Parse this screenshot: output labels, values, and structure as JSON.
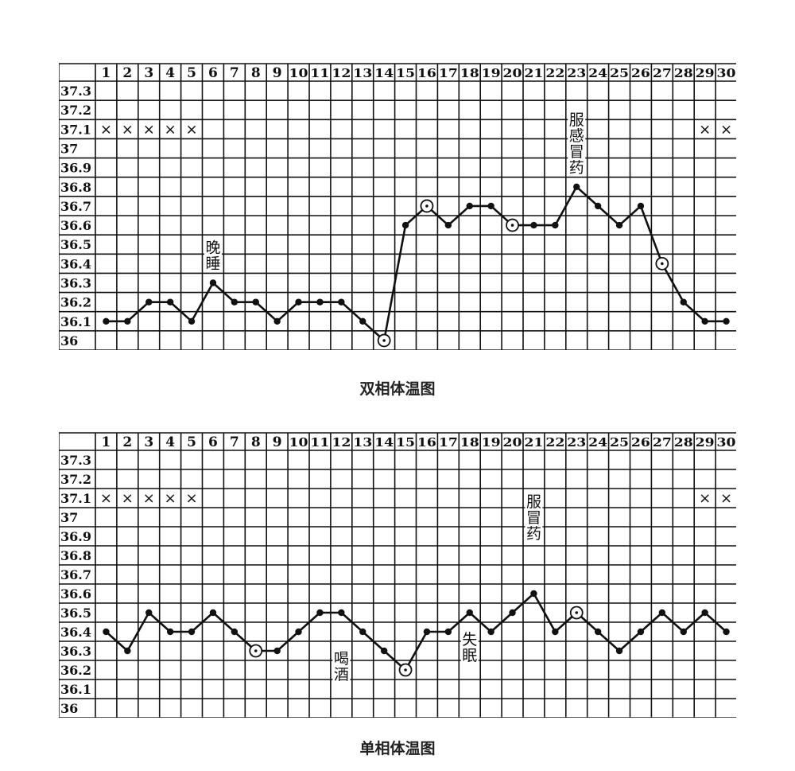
{
  "chart_data": [
    {
      "type": "line",
      "title": "双相体温图",
      "x": [
        1,
        2,
        3,
        4,
        5,
        6,
        7,
        8,
        9,
        10,
        11,
        12,
        13,
        14,
        15,
        16,
        17,
        18,
        19,
        20,
        21,
        22,
        23,
        24,
        25,
        26,
        27,
        28,
        29,
        30
      ],
      "y_ticks": [
        "37.3",
        "37.2",
        "37.1",
        "37",
        "36.9",
        "36.8",
        "36.7",
        "36.6",
        "36.5",
        "36.4",
        "36.3",
        "36.2",
        "36.1",
        "36"
      ],
      "ylim": [
        36.0,
        37.3
      ],
      "grid": true,
      "series": [
        {
          "values": [
            36.1,
            36.1,
            36.2,
            36.2,
            36.1,
            36.3,
            36.2,
            36.2,
            36.1,
            36.2,
            36.2,
            36.2,
            36.1,
            36.0,
            36.6,
            36.7,
            36.6,
            36.7,
            36.7,
            36.6,
            36.6,
            36.6,
            36.8,
            36.7,
            36.6,
            36.7,
            36.4,
            36.2,
            36.1,
            36.1
          ]
        }
      ],
      "circled_days": [
        14,
        16,
        20,
        27
      ],
      "x_marks": {
        "days": [
          1,
          2,
          3,
          4,
          5,
          29,
          30
        ],
        "value": 37.1,
        "symbol": "×"
      },
      "annotations": [
        {
          "text": "晚睡",
          "day": 6
        },
        {
          "text": "服感冒药",
          "day": 23
        }
      ]
    },
    {
      "type": "line",
      "title": "单相体温图",
      "x": [
        1,
        2,
        3,
        4,
        5,
        6,
        7,
        8,
        9,
        10,
        11,
        12,
        13,
        14,
        15,
        16,
        17,
        18,
        19,
        20,
        21,
        22,
        23,
        24,
        25,
        26,
        27,
        28,
        29,
        30
      ],
      "y_ticks": [
        "37.3",
        "37.2",
        "37.1",
        "37",
        "36.9",
        "36.8",
        "36.7",
        "36.6",
        "36.5",
        "36.4",
        "36.3",
        "36.2",
        "36.1",
        "36"
      ],
      "ylim": [
        36.0,
        37.3
      ],
      "grid": true,
      "series": [
        {
          "values": [
            36.4,
            36.3,
            36.5,
            36.4,
            36.4,
            36.5,
            36.4,
            36.3,
            36.3,
            36.4,
            36.5,
            36.5,
            36.4,
            36.3,
            36.2,
            36.4,
            36.4,
            36.5,
            36.4,
            36.5,
            36.6,
            36.4,
            36.5,
            36.4,
            36.3,
            36.4,
            36.5,
            36.4,
            36.5,
            36.4
          ]
        }
      ],
      "circled_days": [
        8,
        15,
        23
      ],
      "x_marks": {
        "days": [
          1,
          2,
          3,
          4,
          5,
          29,
          30
        ],
        "value": 37.1,
        "symbol": "×"
      },
      "annotations": [
        {
          "text": "喝酒",
          "day": 12
        },
        {
          "text": "失眠",
          "day": 18
        },
        {
          "text": "服冒药",
          "day": 21
        }
      ]
    }
  ]
}
